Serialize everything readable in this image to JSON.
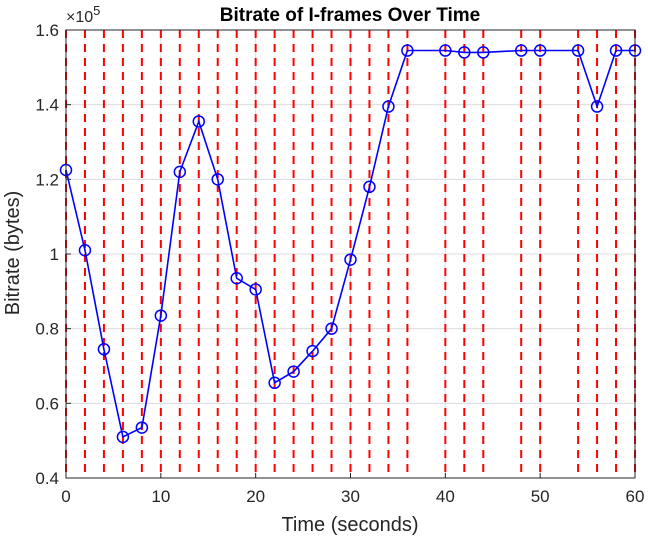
{
  "chart_data": {
    "type": "line",
    "title": "Bitrate of I-frames Over Time",
    "xlabel": "Time (seconds)",
    "ylabel": "Bitrate (bytes)",
    "xlim": [
      0,
      60
    ],
    "ylim": [
      0.4,
      1.6
    ],
    "x_ticks": [
      "0",
      "10",
      "20",
      "30",
      "40",
      "50",
      "60"
    ],
    "y_ticks": [
      "0.4",
      "0.6",
      "0.8",
      "1",
      "1.2",
      "1.4",
      "1.6"
    ],
    "y_exponent": {
      "base": "×10",
      "power": "5"
    },
    "grid": true,
    "series": [
      {
        "color": "#0000ff",
        "marker": "circle",
        "x": [
          0,
          2,
          4,
          6,
          8,
          10,
          12,
          14,
          16,
          18,
          20,
          22,
          24,
          26,
          28,
          30,
          32,
          34,
          36,
          40,
          42,
          44,
          48,
          50,
          54,
          56,
          58,
          60
        ],
        "y": [
          1.225,
          1.01,
          0.745,
          0.51,
          0.535,
          0.835,
          1.22,
          1.355,
          1.2,
          0.935,
          0.905,
          0.655,
          0.685,
          0.74,
          0.8,
          0.985,
          1.18,
          1.395,
          1.545,
          1.545,
          1.54,
          1.54,
          1.545,
          1.545,
          1.545,
          1.395,
          1.545,
          1.545
        ]
      }
    ],
    "vertical_markers": {
      "color": "#ff0000",
      "style": "dashed",
      "x": [
        0,
        2,
        4,
        6,
        8,
        10,
        12,
        14,
        16,
        18,
        20,
        22,
        24,
        26,
        28,
        30,
        32,
        34,
        36,
        40,
        42,
        44,
        48,
        50,
        54,
        56,
        58,
        60
      ]
    }
  }
}
